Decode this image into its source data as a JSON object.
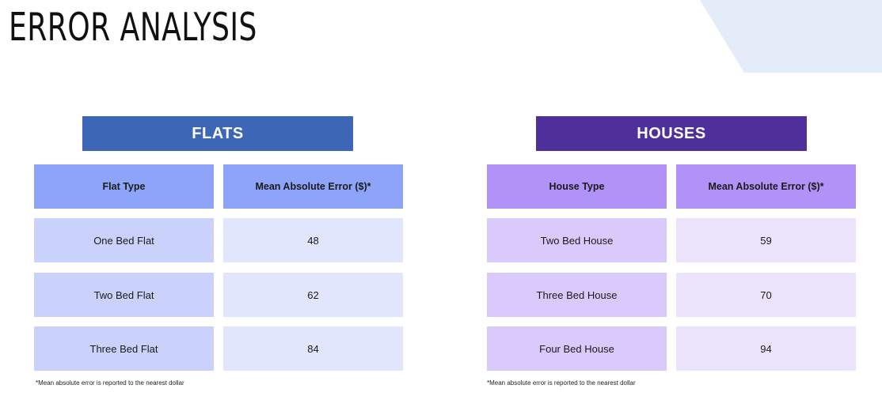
{
  "page": {
    "title": "ERROR ANALYSIS"
  },
  "colors": {
    "flats_banner": "#3d67b6",
    "flats_header": "#8ea4f8",
    "flats_type_cell": "#cad2fb",
    "flats_value_cell": "#e1e6fd",
    "houses_banner": "#4f2f9a",
    "houses_header": "#b192f7",
    "houses_type_cell": "#dac9fb",
    "houses_value_cell": "#ebe2fc",
    "corner_shape": "#e3ecf8"
  },
  "flats": {
    "banner": "FLATS",
    "col_type": "Flat Type",
    "col_error": "Mean Absolute Error ($)*",
    "rows": [
      {
        "type": "One Bed Flat",
        "error": "48"
      },
      {
        "type": "Two Bed Flat",
        "error": "62"
      },
      {
        "type": "Three Bed Flat",
        "error": "84"
      }
    ],
    "footnote": "*Mean absolute error is reported to the nearest dollar"
  },
  "houses": {
    "banner": "HOUSES",
    "col_type": "House Type",
    "col_error": "Mean Absolute Error ($)*",
    "rows": [
      {
        "type": "Two Bed House",
        "error": "59"
      },
      {
        "type": "Three Bed House",
        "error": "70"
      },
      {
        "type": "Four Bed House",
        "error": "94"
      }
    ],
    "footnote": "*Mean absolute error is reported to the nearest dollar"
  }
}
